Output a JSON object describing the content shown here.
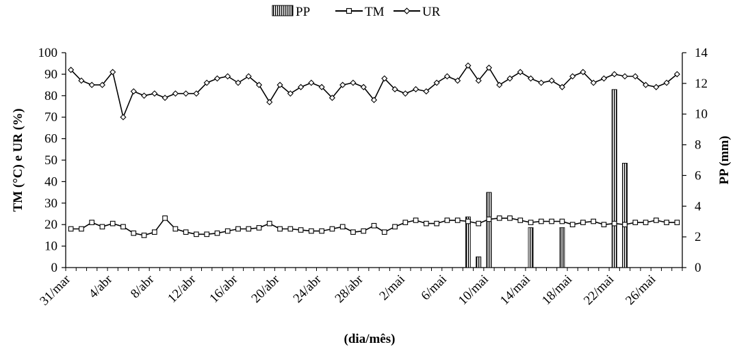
{
  "chart_data": {
    "type": "bar+line",
    "x_label": "(dia/mês)",
    "y_left_label": "TM (°C) e UR (%)",
    "y_right_label": "PP (mm)",
    "y_left_range": [
      0,
      100
    ],
    "y_left_ticks": [
      "0",
      "10",
      "20",
      "30",
      "40",
      "50",
      "60",
      "70",
      "80",
      "90",
      "100"
    ],
    "y_right_range": [
      0,
      14
    ],
    "y_right_ticks": [
      "0",
      "2",
      "4",
      "6",
      "8",
      "10",
      "12",
      "14"
    ],
    "x_tick_labels": [
      "31/mar",
      "4/abr",
      "8/abr",
      "12/abr",
      "16/abr",
      "20/abr",
      "24/abr",
      "28/abr",
      "2/mai",
      "6/mai",
      "10/mai",
      "14/mai",
      "18/mai",
      "22/mai",
      "26/mai"
    ],
    "legend": [
      "PP",
      "TM",
      "UR"
    ],
    "legend_position": "top-center",
    "n_days": 59,
    "series": [
      {
        "name": "TM",
        "axis": "left",
        "marker": "square",
        "values": [
          18,
          18,
          21,
          19,
          20.5,
          19,
          16,
          15,
          16.5,
          23,
          18,
          16.5,
          15.5,
          15.5,
          16,
          17,
          18,
          18,
          18.5,
          20.5,
          18,
          18,
          17.5,
          17,
          17,
          18,
          19,
          16.5,
          17,
          19.5,
          16.5,
          19,
          21,
          22,
          20.5,
          20.5,
          22,
          22,
          21.5,
          20.5,
          22.5,
          23,
          23,
          22,
          21,
          21.5,
          21.5,
          21.5,
          20,
          21,
          21.5,
          20,
          20.5,
          20,
          21,
          21,
          22,
          21,
          21
        ]
      },
      {
        "name": "UR",
        "axis": "left",
        "marker": "diamond",
        "values": [
          92,
          87,
          85,
          85,
          91,
          70,
          82,
          80,
          81,
          79,
          81,
          81,
          81,
          86,
          88,
          89,
          86,
          89,
          85,
          77,
          85,
          81,
          84,
          86,
          84,
          79,
          85,
          86,
          84,
          78,
          88,
          83,
          81,
          83,
          82,
          86,
          89,
          87,
          94,
          87,
          93,
          85,
          88,
          91,
          88,
          86,
          87,
          84,
          89,
          91,
          86,
          88,
          90,
          89,
          89,
          85,
          84,
          86,
          90
        ]
      },
      {
        "name": "PP",
        "axis": "right",
        "type": "bar",
        "values": [
          0,
          0,
          0,
          0,
          0,
          0,
          0,
          0,
          0,
          0,
          0,
          0,
          0,
          0,
          0,
          0,
          0,
          0,
          0,
          0,
          0,
          0,
          0,
          0,
          0,
          0,
          0,
          0,
          0,
          0,
          0,
          0,
          0,
          0,
          0,
          0,
          0,
          0,
          3.3,
          0.7,
          4.9,
          0,
          0,
          0,
          2.6,
          0,
          0,
          2.6,
          0,
          0,
          0,
          0,
          11.6,
          6.8,
          0,
          0,
          0,
          0,
          0
        ]
      }
    ]
  }
}
